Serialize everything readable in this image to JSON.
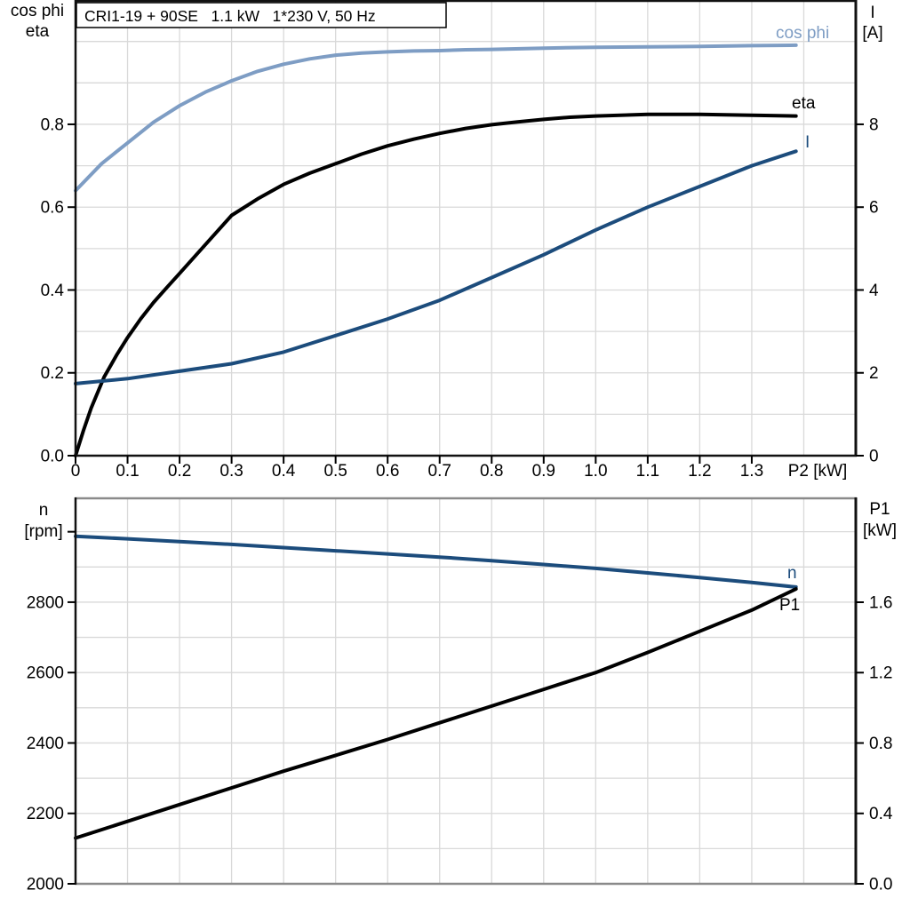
{
  "colors": {
    "light_blue": "#7E9DC4",
    "dark_blue": "#1C4C7C",
    "black": "#000000",
    "grid": "#D9D9D9",
    "frame_dark": "#111111",
    "frame_gray": "#8A8A8A",
    "text": "#000000",
    "title_border": "#000000",
    "background": "#FFFFFF"
  },
  "chart_data": [
    {
      "type": "line",
      "title": "CRI1-19 + 90SE   1.1 kW   1*230 V, 50 Hz",
      "x_axis": {
        "label": "P2 [kW]",
        "range": [
          0,
          1.5
        ],
        "tick_values": [
          0,
          0.1,
          0.2,
          0.3,
          0.4,
          0.5,
          0.6,
          0.7,
          0.8,
          0.9,
          1.0,
          1.1,
          1.2,
          1.3
        ],
        "tick_labels": [
          "0",
          "0.1",
          "0.2",
          "0.3",
          "0.4",
          "0.5",
          "0.6",
          "0.7",
          "0.8",
          "0.9",
          "1.0",
          "1.1",
          "1.2",
          "1.3"
        ],
        "grid_values": [
          0.1,
          0.2,
          0.3,
          0.4,
          0.5,
          0.6,
          0.7,
          0.8,
          0.9,
          1.0,
          1.1,
          1.2,
          1.3,
          1.4
        ]
      },
      "left_axis": {
        "label_lines": [
          "cos phi",
          "eta"
        ],
        "range": [
          0,
          1.098
        ],
        "tick_values": [
          0.0,
          0.2,
          0.4,
          0.6,
          0.8
        ],
        "tick_labels": [
          "0.0",
          "0.2",
          "0.4",
          "0.6",
          "0.8"
        ],
        "grid_values": [
          0.1,
          0.2,
          0.3,
          0.4,
          0.5,
          0.6,
          0.7,
          0.8,
          0.9,
          1.0
        ],
        "extra_tick_values": []
      },
      "right_axis": {
        "label_lines": [
          "I",
          "[A]"
        ],
        "range": [
          0,
          10.98
        ],
        "tick_values": [
          0,
          2,
          4,
          6,
          8
        ],
        "tick_labels": [
          "0",
          "2",
          "4",
          "6",
          "8"
        ],
        "extra_tick_values": []
      },
      "series": [
        {
          "name": "cos phi",
          "axis": "left",
          "color_key": "light_blue",
          "points": [
            [
              0,
              0.64
            ],
            [
              0.05,
              0.705
            ],
            [
              0.1,
              0.755
            ],
            [
              0.15,
              0.805
            ],
            [
              0.2,
              0.845
            ],
            [
              0.25,
              0.878
            ],
            [
              0.3,
              0.905
            ],
            [
              0.35,
              0.928
            ],
            [
              0.4,
              0.945
            ],
            [
              0.45,
              0.958
            ],
            [
              0.5,
              0.967
            ],
            [
              0.55,
              0.972
            ],
            [
              0.6,
              0.975
            ],
            [
              0.65,
              0.977
            ],
            [
              0.7,
              0.978
            ],
            [
              0.75,
              0.98
            ],
            [
              0.8,
              0.981
            ],
            [
              0.9,
              0.984
            ],
            [
              1.0,
              0.986
            ],
            [
              1.1,
              0.987
            ],
            [
              1.2,
              0.988
            ],
            [
              1.3,
              0.99
            ],
            [
              1.385,
              0.991
            ]
          ],
          "label": {
            "text": "cos phi",
            "px": [
              873,
              43
            ],
            "anchor": "start"
          }
        },
        {
          "name": "eta",
          "axis": "left",
          "color_key": "black",
          "points": [
            [
              0,
              0
            ],
            [
              0.015,
              0.06
            ],
            [
              0.03,
              0.115
            ],
            [
              0.055,
              0.19
            ],
            [
              0.08,
              0.245
            ],
            [
              0.1,
              0.285
            ],
            [
              0.125,
              0.33
            ],
            [
              0.15,
              0.37
            ],
            [
              0.175,
              0.405
            ],
            [
              0.2,
              0.44
            ],
            [
              0.25,
              0.51
            ],
            [
              0.3,
              0.58
            ],
            [
              0.35,
              0.62
            ],
            [
              0.4,
              0.655
            ],
            [
              0.45,
              0.682
            ],
            [
              0.5,
              0.705
            ],
            [
              0.55,
              0.728
            ],
            [
              0.6,
              0.748
            ],
            [
              0.65,
              0.764
            ],
            [
              0.7,
              0.778
            ],
            [
              0.75,
              0.79
            ],
            [
              0.8,
              0.799
            ],
            [
              0.85,
              0.806
            ],
            [
              0.9,
              0.812
            ],
            [
              0.95,
              0.817
            ],
            [
              1.0,
              0.82
            ],
            [
              1.1,
              0.824
            ],
            [
              1.2,
              0.824
            ],
            [
              1.3,
              0.822
            ],
            [
              1.385,
              0.82
            ]
          ],
          "label": {
            "text": "eta",
            "px": [
              891,
              122
            ],
            "anchor": "start"
          }
        },
        {
          "name": "I",
          "axis": "right",
          "color_key": "dark_blue",
          "points": [
            [
              0,
              1.74
            ],
            [
              0.1,
              1.86
            ],
            [
              0.2,
              2.04
            ],
            [
              0.3,
              2.22
            ],
            [
              0.4,
              2.5
            ],
            [
              0.5,
              2.9
            ],
            [
              0.6,
              3.3
            ],
            [
              0.7,
              3.75
            ],
            [
              0.8,
              4.3
            ],
            [
              0.9,
              4.85
            ],
            [
              1.0,
              5.45
            ],
            [
              1.1,
              6.0
            ],
            [
              1.2,
              6.5
            ],
            [
              1.3,
              7.0
            ],
            [
              1.385,
              7.35
            ]
          ],
          "label": {
            "text": "I",
            "px": [
              906,
              166
            ],
            "anchor": "start"
          }
        }
      ]
    },
    {
      "type": "line",
      "title": "",
      "x_axis": {
        "label": "",
        "range": [
          0,
          1.5
        ],
        "tick_values": [],
        "tick_labels": [],
        "grid_values": [
          0.1,
          0.2,
          0.3,
          0.4,
          0.5,
          0.6,
          0.7,
          0.8,
          0.9,
          1.0,
          1.1,
          1.2,
          1.3,
          1.4
        ]
      },
      "left_axis": {
        "label_lines": [
          "n",
          "[rpm]"
        ],
        "range": [
          2000,
          3095
        ],
        "tick_values": [
          2000,
          2200,
          2400,
          2600,
          2800
        ],
        "tick_labels": [
          "2000",
          "2200",
          "2400",
          "2600",
          "2800"
        ],
        "grid_values": [
          2100,
          2200,
          2300,
          2400,
          2500,
          2600,
          2700,
          2800,
          2900,
          3000
        ],
        "extra_tick_values": [
          3000
        ]
      },
      "right_axis": {
        "label_lines": [
          "P1",
          "[kW]"
        ],
        "range": [
          0,
          2.1905
        ],
        "tick_values": [
          0.0,
          0.4,
          0.8,
          1.2,
          1.6
        ],
        "tick_labels": [
          "0.0",
          "0.4",
          "0.8",
          "1.2",
          "1.6"
        ],
        "extra_tick_values": []
      },
      "series": [
        {
          "name": "n",
          "axis": "left",
          "color_key": "dark_blue",
          "points": [
            [
              0,
              2987
            ],
            [
              0.1,
              2980
            ],
            [
              0.2,
              2972
            ],
            [
              0.3,
              2964
            ],
            [
              0.4,
              2955
            ],
            [
              0.5,
              2946
            ],
            [
              0.6,
              2937
            ],
            [
              0.7,
              2928
            ],
            [
              0.8,
              2918
            ],
            [
              0.9,
              2907
            ],
            [
              1.0,
              2896
            ],
            [
              1.1,
              2883
            ],
            [
              1.2,
              2870
            ],
            [
              1.3,
              2856
            ],
            [
              1.385,
              2843
            ]
          ],
          "label": {
            "text": "n",
            "px": [
              886,
              651
            ],
            "anchor": "start"
          }
        },
        {
          "name": "P1",
          "axis": "right",
          "color_key": "black",
          "points": [
            [
              0,
              0.26
            ],
            [
              0.1,
              0.355
            ],
            [
              0.2,
              0.45
            ],
            [
              0.3,
              0.545
            ],
            [
              0.4,
              0.64
            ],
            [
              0.5,
              0.73
            ],
            [
              0.6,
              0.82
            ],
            [
              0.7,
              0.915
            ],
            [
              0.8,
              1.01
            ],
            [
              0.9,
              1.105
            ],
            [
              1.0,
              1.2
            ],
            [
              1.1,
              1.315
            ],
            [
              1.2,
              1.435
            ],
            [
              1.3,
              1.555
            ],
            [
              1.385,
              1.675
            ]
          ],
          "label": {
            "text": "P1",
            "px": [
              877,
              687
            ],
            "anchor": "start"
          }
        }
      ]
    }
  ]
}
